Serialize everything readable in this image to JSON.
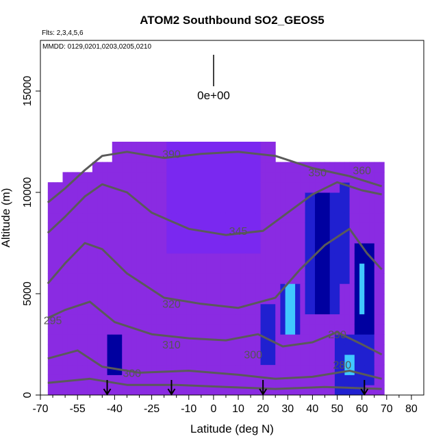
{
  "chart_data": {
    "type": "heatmap",
    "title": "ATOM2 Southbound SO2_GEOS5",
    "flights_note": "Flts: 2,3,4,5,6",
    "dates_note": "MMDD: 0129,0201,0203,0205,0210",
    "xlabel": "Latitude (deg N)",
    "ylabel": "Altitude (m)",
    "xlim": [
      -70,
      85
    ],
    "ylim": [
      0,
      17500
    ],
    "x_tick_labels": [
      "-70",
      "-55",
      "-40",
      "-25",
      "-10",
      "0",
      "10",
      "20",
      "30",
      "40",
      "50",
      "60",
      "70",
      "80"
    ],
    "x_tick_values": [
      -70,
      -55,
      -40,
      -25,
      -10,
      0,
      10,
      20,
      30,
      40,
      50,
      60,
      70,
      80
    ],
    "y_ticks": [
      0,
      5000,
      10000,
      15000
    ],
    "scale_label": "0e+00",
    "colors": {
      "background_field": "#8a2be2",
      "low": "#7a28f0",
      "mid": "#2020d0",
      "high": "#0000a0",
      "peak": "#40c8ff",
      "contour": "#5a5a5a"
    },
    "contour_labels": [
      {
        "text": "390",
        "x": -17,
        "y": 11700
      },
      {
        "text": "350",
        "x": 42,
        "y": 10800
      },
      {
        "text": "360",
        "x": 60,
        "y": 10900
      },
      {
        "text": "345",
        "x": 10,
        "y": 7900
      },
      {
        "text": "320",
        "x": -17,
        "y": 4300
      },
      {
        "text": "310",
        "x": -17,
        "y": 2300
      },
      {
        "text": "300",
        "x": -33,
        "y": 900
      },
      {
        "text": "300",
        "x": 16,
        "y": 1800
      },
      {
        "text": "290",
        "x": 50,
        "y": 2800
      },
      {
        "text": "280",
        "x": 52,
        "y": 1300
      },
      {
        "text": "295",
        "x": -65,
        "y": 3500
      }
    ],
    "flight_markers_lat": [
      -43,
      -17,
      20,
      61
    ]
  }
}
